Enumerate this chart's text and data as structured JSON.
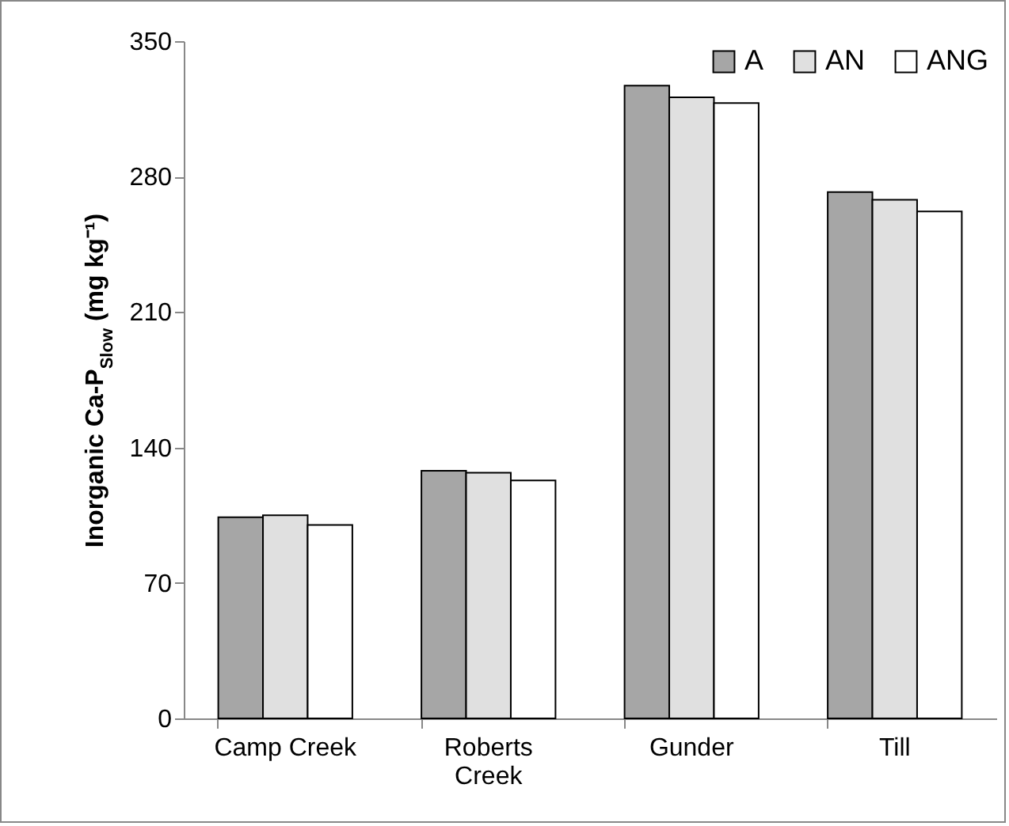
{
  "chart_data": {
    "type": "bar",
    "ylabel": "Inorganic Ca-P$_{Slow}$ (mg kg⁻¹)",
    "categories": [
      "Camp Creek",
      "Roberts Creek",
      "Gunder",
      "Till"
    ],
    "series": [
      {
        "name": "A",
        "color": "#a6a6a6",
        "values": [
          104,
          128,
          327,
          272
        ]
      },
      {
        "name": "AN",
        "color": "#e0e0e0",
        "values": [
          105,
          127,
          321,
          268
        ]
      },
      {
        "name": "ANG",
        "color": "#ffffff",
        "values": [
          100,
          123,
          318,
          262
        ]
      }
    ],
    "ylim": [
      0,
      350
    ],
    "yticks": [
      0,
      70,
      140,
      210,
      280,
      350
    ],
    "grid": false,
    "legend": "top right"
  }
}
